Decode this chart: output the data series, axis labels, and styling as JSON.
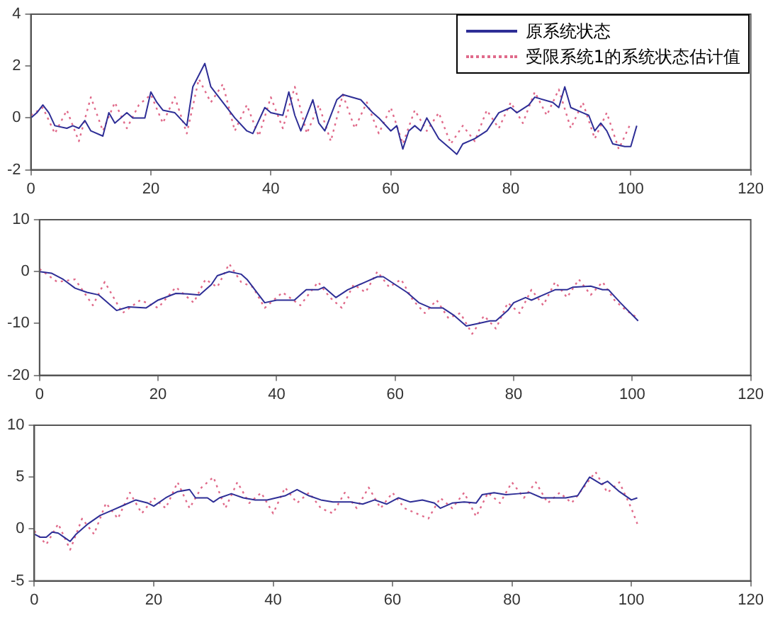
{
  "chart_data": [
    {
      "type": "line",
      "xlim": [
        0,
        120
      ],
      "xticks": [
        0,
        20,
        40,
        60,
        80,
        100,
        120
      ],
      "ylim": [
        -2,
        4
      ],
      "yticks": [
        -2,
        0,
        2,
        4
      ],
      "grid": false,
      "legend": "top right",
      "marker": "none",
      "series": [
        {
          "name": "原系统状态",
          "color": "#2e2e96",
          "line_style": "solid",
          "x": [
            0,
            1,
            2,
            3,
            4,
            6,
            7,
            8,
            9,
            10,
            12,
            13,
            14,
            16,
            17,
            19,
            20,
            21,
            22,
            24,
            26,
            27,
            29,
            30,
            32,
            34,
            36,
            37,
            39,
            40,
            42,
            43,
            44,
            45,
            47,
            48,
            49,
            51,
            52,
            55,
            57,
            58,
            60,
            61,
            62,
            63,
            64,
            65,
            66,
            68,
            70,
            71,
            72,
            74,
            76,
            78,
            80,
            81,
            83,
            84,
            87,
            88,
            89,
            90,
            92,
            93,
            94,
            95,
            96,
            97,
            99,
            100,
            101
          ],
          "values": [
            0,
            0.2,
            0.5,
            0.2,
            -0.3,
            -0.4,
            -0.3,
            -0.4,
            -0.1,
            -0.5,
            -0.7,
            0.2,
            -0.2,
            0.2,
            0,
            0,
            1.0,
            0.6,
            0.3,
            0.2,
            -0.3,
            1.2,
            2.1,
            1.2,
            0.6,
            0,
            -0.5,
            -0.6,
            0.4,
            0.2,
            0.1,
            1.0,
            0.1,
            -0.5,
            0.7,
            -0.2,
            -0.5,
            0.7,
            0.9,
            0.7,
            0.2,
            0,
            -0.5,
            -0.3,
            -1.2,
            -0.5,
            -0.3,
            -0.5,
            0,
            -0.8,
            -1.2,
            -1.4,
            -1.0,
            -0.8,
            -0.5,
            0.2,
            0.4,
            0.2,
            0.5,
            0.8,
            0.6,
            0.4,
            1.2,
            0.4,
            0.2,
            0.1,
            -0.5,
            -0.2,
            -0.5,
            -1.0,
            -1.1,
            -1.1,
            -0.3
          ]
        },
        {
          "name": "受限系统1的系统状态估计值",
          "color": "#e06a8a",
          "line_style": "dotted",
          "x": [
            0,
            2,
            4,
            6,
            8,
            10,
            12,
            14,
            16,
            18,
            20,
            22,
            24,
            26,
            28,
            30,
            32,
            34,
            36,
            38,
            40,
            42,
            44,
            46,
            48,
            50,
            52,
            54,
            56,
            58,
            60,
            62,
            64,
            66,
            68,
            70,
            72,
            74,
            76,
            78,
            80,
            82,
            84,
            86,
            88,
            90,
            92,
            94,
            96,
            98,
            100
          ],
          "values": [
            0.1,
            0.4,
            -0.6,
            0.3,
            -0.9,
            0.8,
            -0.5,
            0.6,
            -0.4,
            0.5,
            0.9,
            -0.2,
            0.8,
            -0.6,
            1.5,
            0.6,
            1.3,
            -0.5,
            0.5,
            -0.7,
            0.8,
            -0.4,
            1.2,
            -0.6,
            0.5,
            -0.9,
            0.9,
            -0.4,
            0.6,
            -0.6,
            0.4,
            -1.0,
            0.3,
            -0.5,
            0.2,
            -1.0,
            -0.3,
            -0.9,
            0.3,
            -0.4,
            0.6,
            -0.2,
            1.0,
            0.1,
            1.1,
            -0.4,
            0.6,
            -0.8,
            0.2,
            -1.2,
            -0.2
          ]
        }
      ]
    },
    {
      "type": "line",
      "xlim": [
        0,
        120
      ],
      "xticks": [
        0,
        20,
        40,
        60,
        80,
        100,
        120
      ],
      "ylim": [
        -20,
        10
      ],
      "yticks": [
        -20,
        -10,
        0,
        10
      ],
      "grid": false,
      "marker": "none",
      "series": [
        {
          "color": "#2e2e96",
          "line_style": "solid",
          "x": [
            0,
            2,
            4,
            6,
            8,
            10,
            12,
            13,
            15,
            18,
            20,
            23,
            25,
            27,
            29,
            30,
            32,
            34,
            35,
            37,
            38,
            40,
            43,
            45,
            47,
            48,
            50,
            52,
            55,
            57,
            58,
            60,
            62,
            64,
            66,
            68,
            70,
            72,
            74,
            76,
            77,
            79,
            80,
            82,
            83,
            85,
            87,
            89,
            90,
            93,
            95,
            96,
            98,
            101
          ],
          "values": [
            0,
            -0.3,
            -1.5,
            -3.2,
            -4,
            -4.5,
            -6.5,
            -7.5,
            -6.8,
            -7,
            -5.5,
            -4.2,
            -4.3,
            -4.5,
            -2.5,
            -0.8,
            0,
            -0.5,
            -1.5,
            -4.5,
            -6,
            -5.5,
            -5.5,
            -3.5,
            -3.5,
            -3,
            -5,
            -3.5,
            -2,
            -1,
            -1,
            -2.5,
            -4,
            -6,
            -7,
            -7,
            -8.5,
            -10.5,
            -10,
            -9.5,
            -9.5,
            -7.5,
            -6,
            -5,
            -5.5,
            -4.5,
            -3.5,
            -3.5,
            -3,
            -2.8,
            -3.5,
            -3.5,
            -6,
            -9.5
          ]
        },
        {
          "color": "#e06a8a",
          "line_style": "dotted",
          "x": [
            0,
            3,
            6,
            9,
            11,
            14,
            17,
            20,
            23,
            26,
            28,
            30,
            32,
            34,
            36,
            38,
            41,
            44,
            47,
            49,
            51,
            53,
            55,
            57,
            59,
            61,
            63,
            65,
            67,
            69,
            71,
            73,
            75,
            77,
            79,
            81,
            83,
            85,
            87,
            89,
            91,
            93,
            95,
            97,
            99,
            101
          ],
          "values": [
            0.5,
            -2,
            -1.5,
            -6.5,
            -2,
            -8,
            -5.5,
            -7,
            -3,
            -6,
            -1.5,
            -3,
            1.5,
            -2,
            -3,
            -7,
            -4,
            -6.5,
            -2,
            -5,
            -7,
            -2.5,
            -4,
            0,
            -3,
            -1.5,
            -5.5,
            -8,
            -5.5,
            -9,
            -8,
            -12,
            -8.5,
            -11,
            -6,
            -8,
            -3.5,
            -6.5,
            -2,
            -5,
            -1.5,
            -4.5,
            -2,
            -5.5,
            -7.5,
            -9
          ]
        }
      ]
    },
    {
      "type": "line",
      "xlim": [
        0,
        120
      ],
      "xticks": [
        0,
        20,
        40,
        60,
        80,
        100,
        120
      ],
      "ylim": [
        -5,
        10
      ],
      "yticks": [
        -5,
        0,
        5,
        10
      ],
      "grid": false,
      "marker": "none",
      "series": [
        {
          "color": "#2e2e96",
          "line_style": "solid",
          "x": [
            0,
            1,
            2,
            3,
            4,
            5,
            6,
            7,
            9,
            11,
            13,
            15,
            17,
            19,
            20,
            22,
            24,
            26,
            27,
            29,
            30,
            31,
            33,
            35,
            37,
            39,
            42,
            44,
            46,
            48,
            50,
            53,
            55,
            57,
            59,
            61,
            63,
            65,
            67,
            68,
            70,
            72,
            74,
            75,
            77,
            79,
            81,
            83,
            85,
            87,
            89,
            91,
            93,
            95,
            96,
            98,
            100,
            101
          ],
          "values": [
            -0.5,
            -0.8,
            -0.8,
            -0.3,
            -0.4,
            -0.8,
            -1.2,
            -0.5,
            0.5,
            1.3,
            1.8,
            2.3,
            2.8,
            2.5,
            2.2,
            3,
            3.6,
            3.8,
            3,
            3,
            2.6,
            3,
            3.4,
            3,
            2.8,
            2.8,
            3.2,
            3.8,
            3.2,
            2.8,
            2.6,
            2.6,
            2.4,
            2.8,
            2.4,
            3,
            2.6,
            2.8,
            2.5,
            2,
            2.5,
            2.6,
            2.5,
            3.3,
            3.5,
            3.3,
            3.4,
            3.5,
            3,
            3,
            3,
            3.2,
            5,
            4.3,
            4.6,
            3.6,
            2.8,
            3
          ]
        },
        {
          "color": "#e06a8a",
          "line_style": "dotted",
          "x": [
            0,
            2,
            4,
            6,
            8,
            10,
            12,
            14,
            16,
            18,
            20,
            22,
            24,
            26,
            28,
            30,
            32,
            34,
            36,
            38,
            40,
            42,
            44,
            46,
            48,
            50,
            52,
            54,
            56,
            58,
            60,
            62,
            64,
            66,
            68,
            70,
            72,
            74,
            76,
            78,
            80,
            82,
            84,
            86,
            88,
            90,
            92,
            94,
            96,
            98,
            100,
            101
          ],
          "values": [
            -0.2,
            -1.5,
            0.5,
            -2,
            1,
            -0.5,
            2.5,
            1,
            3.5,
            1.5,
            3,
            2,
            4.5,
            2,
            4,
            5,
            2,
            4.5,
            2.5,
            3.5,
            1.5,
            4,
            2.5,
            3.5,
            2,
            1.5,
            3.5,
            2,
            4,
            2,
            3.5,
            2,
            1.5,
            1,
            3,
            2,
            3.5,
            1.2,
            3.5,
            2.5,
            4.5,
            3,
            4.5,
            2.5,
            3.5,
            2.5,
            4,
            5.5,
            3.5,
            4.5,
            2,
            0.5
          ]
        }
      ]
    }
  ]
}
